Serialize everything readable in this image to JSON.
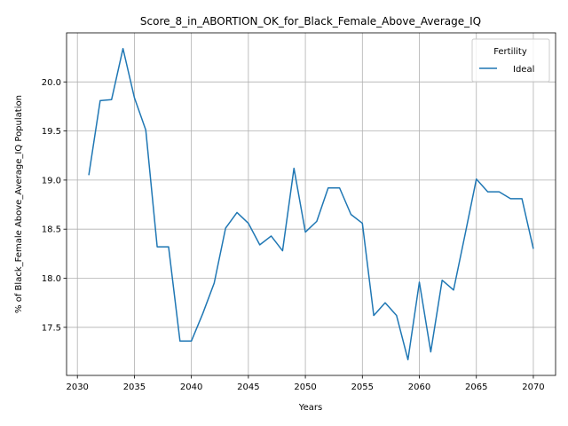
{
  "chart_data": {
    "type": "line",
    "title": "Score_8_in_ABORTION_OK_for_Black_Female_Above_Average_IQ",
    "xlabel": "Years",
    "ylabel": "% of Black_Female Above_Average_IQ Population",
    "xlim": [
      2029.05,
      2071.95
    ],
    "ylim": [
      17.01,
      20.5
    ],
    "xticks": [
      2030,
      2035,
      2040,
      2045,
      2050,
      2055,
      2060,
      2065,
      2070
    ],
    "yticks": [
      17.5,
      18.0,
      18.5,
      19.0,
      19.5,
      20.0
    ],
    "grid": true,
    "legend": {
      "title": "Fertility",
      "position": "top-right"
    },
    "x": [
      2031,
      2032,
      2033,
      2034,
      2035,
      2036,
      2037,
      2038,
      2039,
      2040,
      2041,
      2042,
      2043,
      2044,
      2045,
      2046,
      2047,
      2048,
      2049,
      2050,
      2051,
      2052,
      2053,
      2054,
      2055,
      2056,
      2057,
      2058,
      2059,
      2060,
      2061,
      2062,
      2063,
      2064,
      2065,
      2066,
      2067,
      2068,
      2069,
      2070
    ],
    "series": [
      {
        "name": "Ideal",
        "color": "#1f77b4",
        "values": [
          19.05,
          19.81,
          19.82,
          20.34,
          19.84,
          19.51,
          18.32,
          18.32,
          17.36,
          17.36,
          17.64,
          17.95,
          18.51,
          18.67,
          18.56,
          18.34,
          18.43,
          18.28,
          19.12,
          18.47,
          18.58,
          18.92,
          18.92,
          18.65,
          18.56,
          17.62,
          17.75,
          17.62,
          17.17,
          17.96,
          17.25,
          17.98,
          17.88,
          18.44,
          19.01,
          18.88,
          18.88,
          18.81,
          18.81,
          18.3
        ]
      }
    ]
  }
}
